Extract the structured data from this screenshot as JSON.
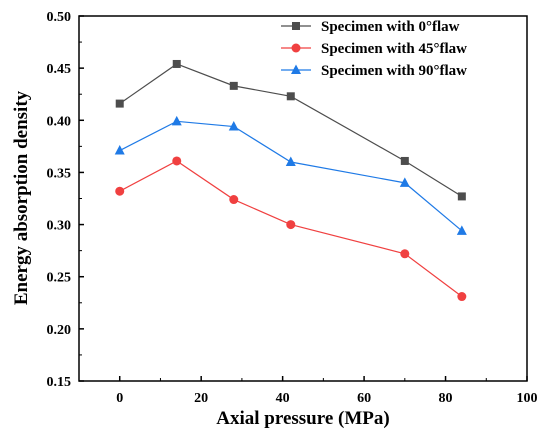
{
  "chart_data": {
    "type": "line",
    "xlabel": "Axial pressure (MPa)",
    "ylabel": "Energy absorption density",
    "xlim": [
      -10,
      100
    ],
    "ylim": [
      0.15,
      0.5
    ],
    "x_ticks": [
      0,
      20,
      40,
      60,
      80,
      100
    ],
    "y_ticks": [
      0.15,
      0.2,
      0.25,
      0.3,
      0.35,
      0.4,
      0.45,
      0.5
    ],
    "x_tick_labels": [
      "0",
      "20",
      "40",
      "60",
      "80",
      "100"
    ],
    "y_tick_labels": [
      "0.15",
      "0.20",
      "0.25",
      "0.30",
      "0.35",
      "0.40",
      "0.45",
      "0.50"
    ],
    "grid": false,
    "legend_position": "top-right",
    "x": [
      0,
      14,
      28,
      42,
      70,
      84
    ],
    "series": [
      {
        "name": "Specimen with 0°flaw",
        "values": [
          0.416,
          0.454,
          0.433,
          0.423,
          0.361,
          0.327
        ],
        "color": "#4d4d4d",
        "marker": "square"
      },
      {
        "name": "Specimen with 45°flaw",
        "values": [
          0.332,
          0.361,
          0.324,
          0.3,
          0.272,
          0.231
        ],
        "color": "#f04040",
        "marker": "circle"
      },
      {
        "name": "Specimen with 90°flaw",
        "values": [
          0.371,
          0.399,
          0.394,
          0.36,
          0.34,
          0.294
        ],
        "color": "#1f7ae6",
        "marker": "triangle"
      }
    ]
  }
}
